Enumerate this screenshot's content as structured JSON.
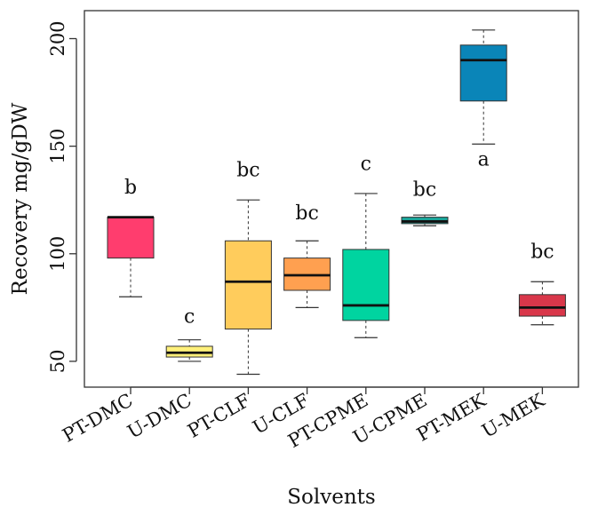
{
  "chart_data": {
    "type": "boxplot",
    "xlabel": "Solvents",
    "ylabel": "Recovery mg/gDW",
    "ylim": [
      38,
      213
    ],
    "yticks": [
      50,
      100,
      150,
      200
    ],
    "categories": [
      "PT-DMC",
      "U-DMC",
      "PT-CLF",
      "U-CLF",
      "PT-CPME",
      "U-CPME",
      "PT-MEK",
      "U-MEK"
    ],
    "boxes": [
      {
        "name": "PT-DMC",
        "min": 80,
        "q1": 98,
        "median": 117,
        "q3": 117,
        "max": 117,
        "color": "#ff3d6e",
        "letter": "b"
      },
      {
        "name": "U-DMC",
        "min": 50,
        "q1": 52,
        "median": 54,
        "q3": 57,
        "max": 60,
        "color": "#fff07a",
        "letter": "c"
      },
      {
        "name": "PT-CLF",
        "min": 44,
        "q1": 65,
        "median": 87,
        "q3": 106,
        "max": 125,
        "color": "#ffcc5c",
        "letter": "bc"
      },
      {
        "name": "U-CLF",
        "min": 75,
        "q1": 83,
        "median": 90,
        "q3": 98,
        "max": 106,
        "color": "#ffa050",
        "letter": "bc"
      },
      {
        "name": "PT-CPME",
        "min": 61,
        "q1": 69,
        "median": 76,
        "q3": 102,
        "max": 128,
        "color": "#00d4a0",
        "letter": "c"
      },
      {
        "name": "U-CPME",
        "min": 113,
        "q1": 114,
        "median": 115,
        "q3": 117,
        "max": 118,
        "color": "#1aa69a",
        "letter": "bc"
      },
      {
        "name": "PT-MEK",
        "min": 151,
        "q1": 171,
        "median": 190,
        "q3": 197,
        "max": 204,
        "color": "#0a85b8",
        "letter": "a"
      },
      {
        "name": "U-MEK",
        "min": 67,
        "q1": 71,
        "median": 75,
        "q3": 81,
        "max": 87,
        "color": "#d9374a",
        "letter": "bc"
      }
    ],
    "letter_positions": {
      "PT-DMC": 128,
      "U-DMC": 68,
      "PT-CLF": 136,
      "U-CLF": 116,
      "PT-CPME": 139,
      "U-CPME": 127,
      "PT-MEK": 141,
      "U-MEK": 98
    }
  }
}
